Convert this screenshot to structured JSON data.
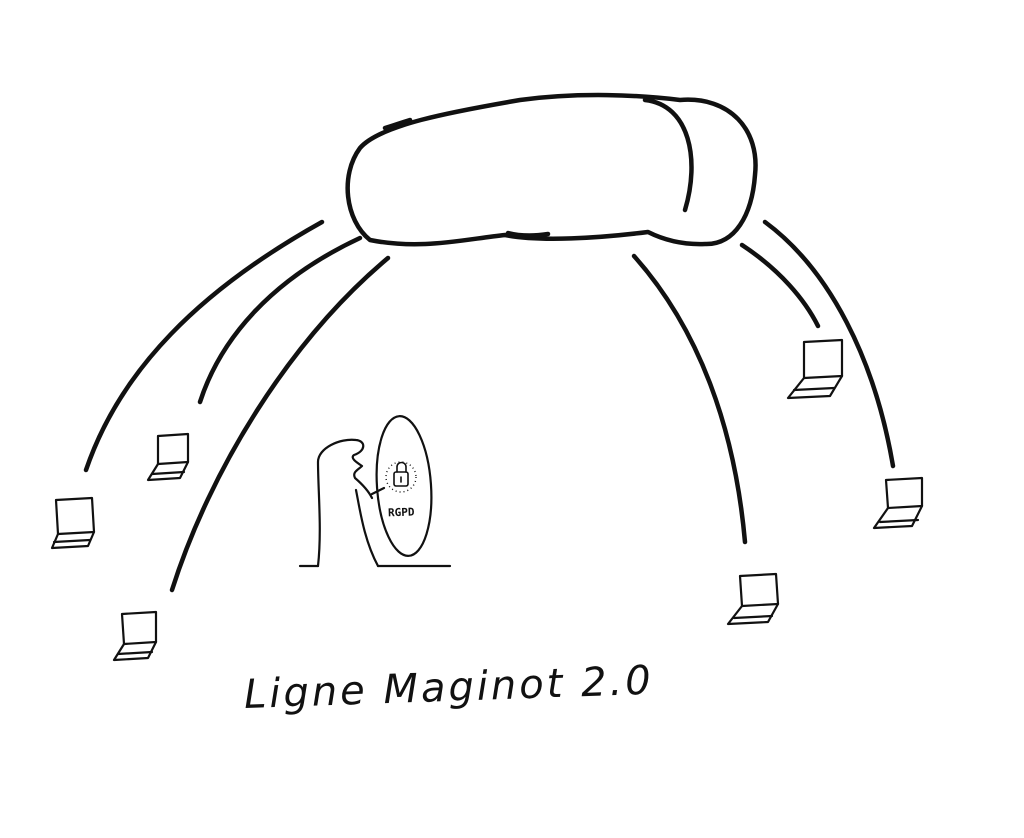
{
  "caption": "Ligne Maginot 2.0",
  "shield_label": "RGPD",
  "icons": {
    "cloud": "cloud-icon",
    "laptop": "laptop-icon",
    "lock": "lock-icon",
    "shield": "shield-icon",
    "figure": "person-figure"
  },
  "colors": {
    "ink": "#111111",
    "background": "#ffffff"
  }
}
